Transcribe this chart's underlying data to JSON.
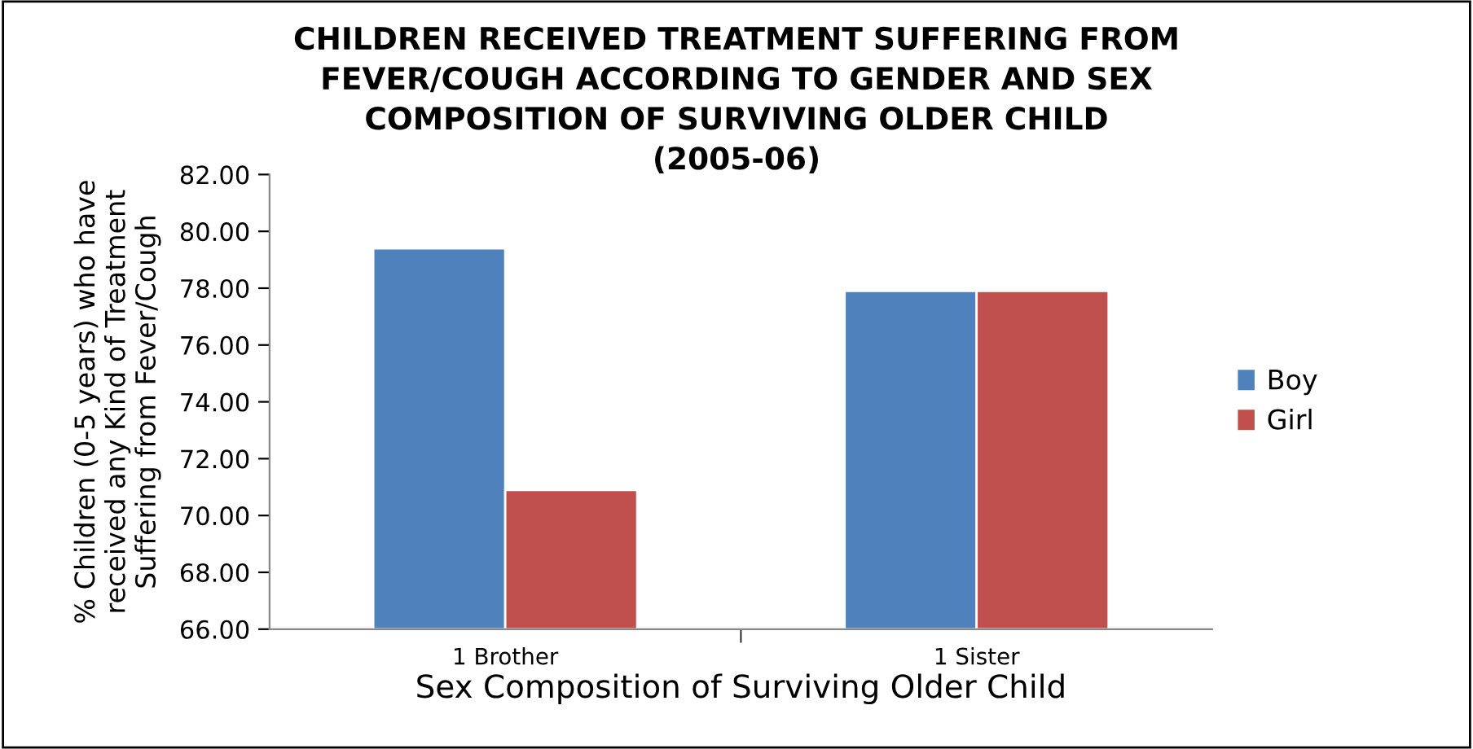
{
  "chart_data": {
    "type": "bar",
    "title": "CHILDREN RECEIVED TREATMENT SUFFERING FROM\nFEVER/COUGH ACCORDING TO GENDER AND SEX\nCOMPOSITION OF SURVIVING OLDER CHILD\n(2005-06)",
    "xlabel": "Sex Composition of Surviving Older Child",
    "ylabel": "% Children (0-5 years) who have\nreceived any Kind of Treatment\nSuffering from Fever/Cough",
    "categories": [
      "1 Brother",
      "1 Sister"
    ],
    "series": [
      {
        "name": "Boy",
        "color": "#4f81bd",
        "values": [
          79.4,
          77.9
        ]
      },
      {
        "name": "Girl",
        "color": "#c0504d",
        "values": [
          70.9,
          77.9
        ]
      }
    ],
    "ylim": [
      66,
      82
    ],
    "yticks": [
      {
        "value": 66,
        "label": "66.00"
      },
      {
        "value": 68,
        "label": "68.00"
      },
      {
        "value": 70,
        "label": "70.00"
      },
      {
        "value": 72,
        "label": "72.00"
      },
      {
        "value": 74,
        "label": "74.00"
      },
      {
        "value": 76,
        "label": "76.00"
      },
      {
        "value": 78,
        "label": "78.00"
      },
      {
        "value": 80,
        "label": "80.00"
      },
      {
        "value": 82,
        "label": "82.00"
      }
    ],
    "grid": false,
    "legend": "right"
  }
}
